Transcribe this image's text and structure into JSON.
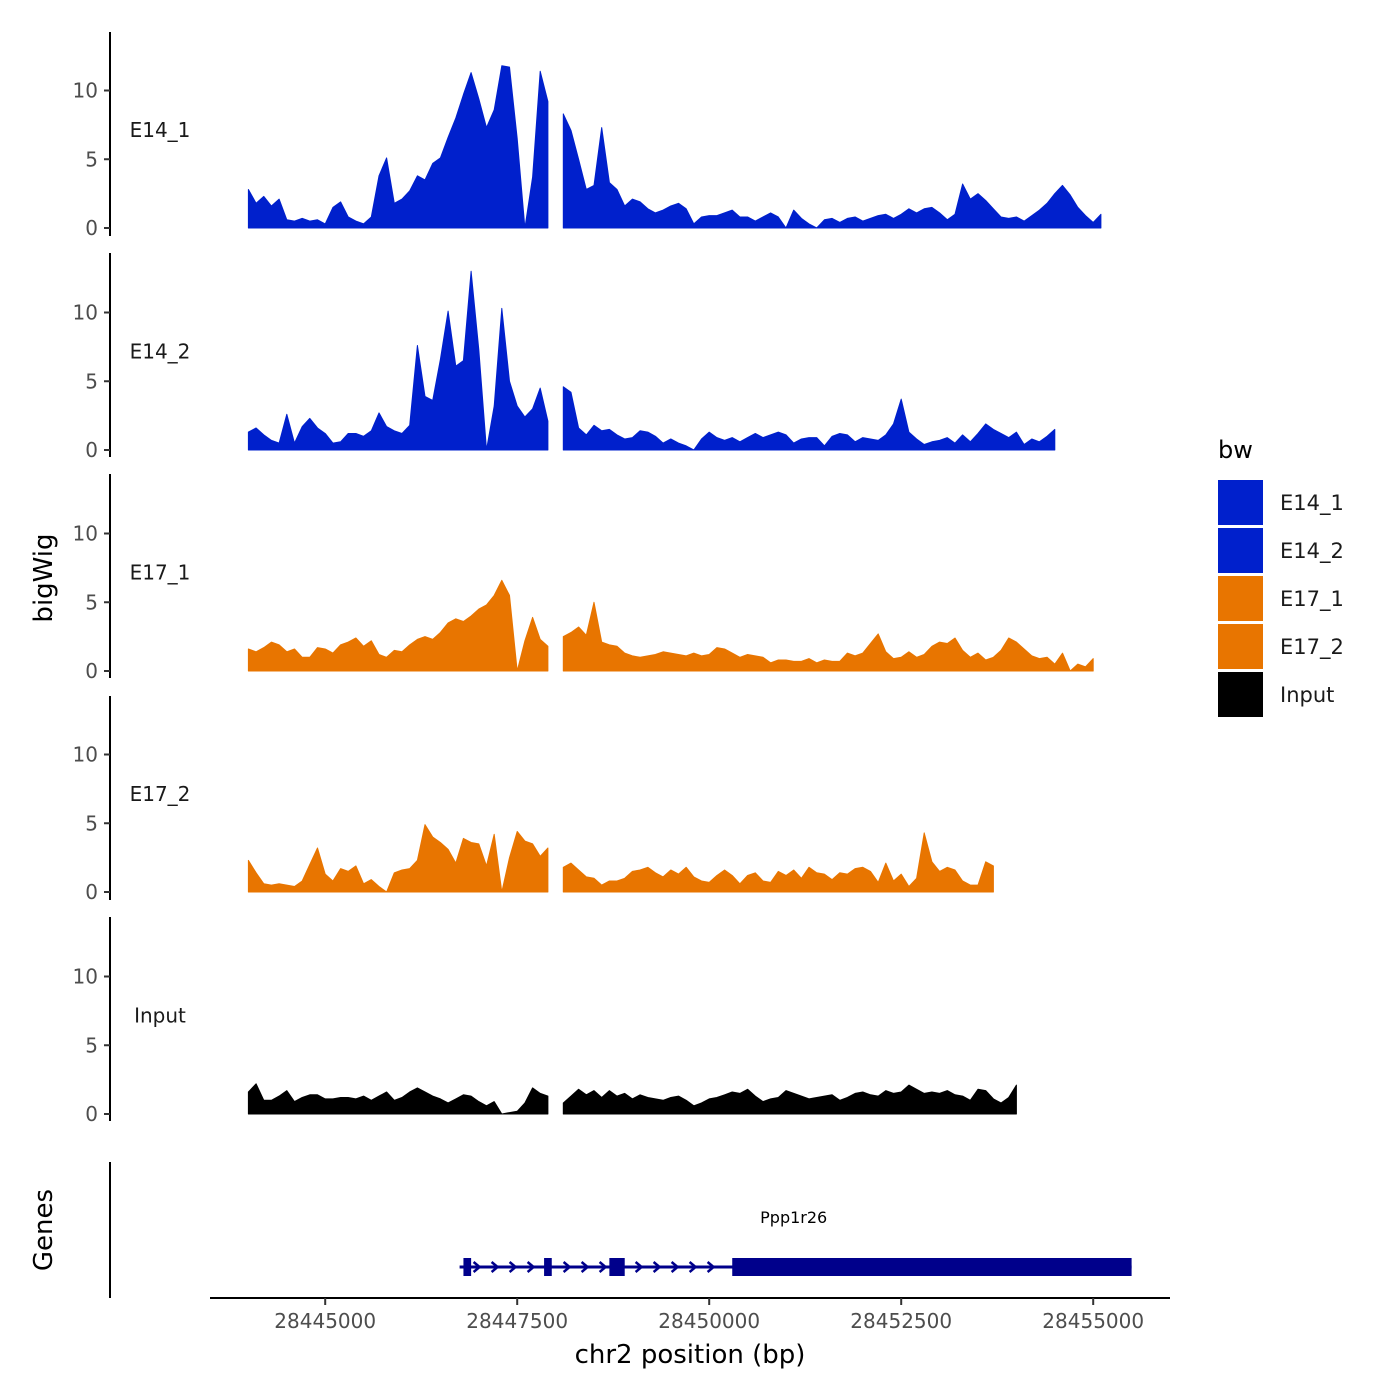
{
  "chart_data": {
    "type": "area",
    "title": "",
    "xlabel": "chr2 position (bp)",
    "ylabel": "bigWig",
    "genes_label": "Genes",
    "xlim": [
      28443500,
      28456000
    ],
    "x_ticks": [
      28445000,
      28447500,
      28450000,
      28452500,
      28455000
    ],
    "x_tick_labels": [
      "28445000",
      "28447500",
      "28450000",
      "28452500",
      "28455000"
    ],
    "ylim": [
      0,
      14
    ],
    "y_ticks": [
      0,
      5,
      10
    ],
    "y_tick_labels": [
      "0",
      "5",
      "10"
    ],
    "legend": {
      "title": "bw",
      "position": "right",
      "entries": [
        {
          "label": "E14_1",
          "color": "#0020CC"
        },
        {
          "label": "E14_2",
          "color": "#0020CC"
        },
        {
          "label": "E17_1",
          "color": "#E87500"
        },
        {
          "label": "E17_2",
          "color": "#E87500"
        },
        {
          "label": "Input",
          "color": "#000000"
        }
      ]
    },
    "x_step": 100,
    "x_start": 28444000,
    "series": [
      {
        "name": "E14_1",
        "color": "#0020CC",
        "values": [
          2.8,
          1.8,
          2.3,
          1.6,
          2.1,
          0.6,
          0.5,
          0.7,
          0.5,
          0.6,
          0.3,
          1.5,
          1.9,
          0.8,
          0.5,
          0.3,
          0.8,
          3.8,
          5.1,
          1.8,
          2.1,
          2.7,
          3.8,
          3.5,
          4.7,
          5.1,
          6.6,
          8.0,
          9.7,
          11.3,
          9.4,
          7.3,
          8.6,
          11.8,
          11.7,
          6.5,
          0.0,
          3.7,
          11.4,
          9.2,
          7.8,
          8.3,
          7.1,
          5.0,
          2.8,
          3.1,
          7.3,
          3.3,
          2.8,
          1.6,
          2.1,
          1.9,
          1.4,
          1.1,
          1.3,
          1.6,
          1.8,
          1.4,
          0.3,
          0.8,
          0.9,
          0.9,
          1.1,
          1.3,
          0.8,
          0.8,
          0.5,
          0.8,
          1.1,
          0.8,
          0.0,
          1.3,
          0.7,
          0.3,
          0.0,
          0.6,
          0.7,
          0.4,
          0.7,
          0.8,
          0.5,
          0.7,
          0.9,
          1.0,
          0.7,
          1.0,
          1.4,
          1.1,
          1.4,
          1.5,
          1.1,
          0.6,
          1.0,
          3.2,
          2.1,
          2.5,
          2.0,
          1.4,
          0.8,
          0.7,
          0.8,
          0.5,
          0.9,
          1.3,
          1.8,
          2.5,
          3.1,
          2.4,
          1.5,
          0.9,
          0.4,
          1.0
        ],
        "gaps": [
          [
            28447950,
            28448050
          ],
          [
            28450600,
            28450650
          ]
        ]
      },
      {
        "name": "E14_2",
        "color": "#0020CC",
        "values": [
          1.3,
          1.6,
          1.1,
          0.7,
          0.5,
          2.6,
          0.5,
          1.7,
          2.3,
          1.6,
          1.2,
          0.5,
          0.6,
          1.2,
          1.2,
          1.0,
          1.4,
          2.7,
          1.7,
          1.4,
          1.2,
          1.8,
          7.6,
          3.9,
          3.6,
          6.6,
          10.1,
          6.1,
          6.5,
          13.0,
          7.3,
          0.0,
          3.2,
          10.3,
          5.0,
          3.2,
          2.4,
          3.0,
          4.5,
          2.1,
          2.0,
          4.6,
          4.2,
          1.6,
          1.1,
          1.8,
          1.4,
          1.5,
          1.1,
          0.8,
          0.9,
          1.4,
          1.3,
          1.0,
          0.5,
          0.8,
          0.5,
          0.3,
          0.0,
          0.8,
          1.3,
          0.9,
          0.7,
          0.9,
          0.6,
          0.9,
          1.2,
          0.9,
          1.1,
          1.3,
          1.1,
          0.5,
          0.8,
          0.9,
          0.9,
          0.3,
          1.0,
          1.2,
          1.1,
          0.6,
          0.9,
          0.8,
          0.7,
          1.1,
          1.9,
          3.7,
          1.3,
          0.8,
          0.4,
          0.6,
          0.7,
          0.9,
          0.5,
          1.1,
          0.6,
          1.2,
          1.9,
          1.5,
          1.2,
          0.9,
          1.3,
          0.4,
          0.8,
          0.6,
          1.0,
          1.5
        ],
        "gaps": [
          [
            28447950,
            28448050
          ],
          [
            28450600,
            28450650
          ]
        ]
      },
      {
        "name": "E17_1",
        "color": "#E87500",
        "values": [
          1.6,
          1.4,
          1.7,
          2.1,
          1.9,
          1.4,
          1.6,
          1.0,
          1.0,
          1.7,
          1.6,
          1.3,
          1.9,
          2.1,
          2.4,
          1.8,
          2.2,
          1.2,
          1.0,
          1.5,
          1.4,
          1.9,
          2.3,
          2.5,
          2.3,
          2.8,
          3.5,
          3.8,
          3.6,
          4.0,
          4.5,
          4.8,
          5.5,
          6.6,
          5.5,
          0.0,
          2.2,
          3.9,
          2.3,
          1.8,
          1.6,
          2.5,
          2.8,
          3.2,
          2.6,
          5.0,
          2.1,
          1.9,
          1.8,
          1.3,
          1.1,
          1.0,
          1.1,
          1.2,
          1.4,
          1.3,
          1.2,
          1.1,
          1.3,
          1.1,
          1.2,
          1.7,
          1.6,
          1.3,
          1.0,
          1.2,
          1.1,
          1.0,
          0.6,
          0.8,
          0.8,
          0.7,
          0.7,
          0.9,
          0.6,
          0.8,
          0.7,
          0.7,
          1.3,
          1.1,
          1.3,
          2.0,
          2.7,
          1.4,
          0.9,
          1.0,
          1.4,
          1.0,
          1.2,
          1.8,
          2.1,
          2.0,
          2.4,
          1.5,
          1.0,
          1.3,
          0.8,
          1.0,
          1.5,
          2.4,
          2.1,
          1.6,
          1.1,
          0.9,
          1.0,
          0.5,
          1.3,
          0.0,
          0.5,
          0.3,
          0.9
        ],
        "gaps": [
          [
            28447950,
            28448050
          ],
          [
            28450650,
            28450700
          ],
          [
            28455000,
            28455050
          ]
        ]
      },
      {
        "name": "E17_2",
        "color": "#E87500",
        "values": [
          2.3,
          1.4,
          0.6,
          0.5,
          0.6,
          0.5,
          0.4,
          0.8,
          2.0,
          3.2,
          1.3,
          0.8,
          1.7,
          1.5,
          1.9,
          0.6,
          0.9,
          0.4,
          0.0,
          1.4,
          1.6,
          1.7,
          2.3,
          4.9,
          4.0,
          3.6,
          3.1,
          2.1,
          3.9,
          3.6,
          3.5,
          1.9,
          4.2,
          0.0,
          2.5,
          4.4,
          3.7,
          3.5,
          2.6,
          3.2,
          2.0,
          1.8,
          2.1,
          1.6,
          1.1,
          1.0,
          0.5,
          0.8,
          0.8,
          1.0,
          1.5,
          1.6,
          1.8,
          1.4,
          1.1,
          1.6,
          1.3,
          1.8,
          1.1,
          0.8,
          0.7,
          1.2,
          1.6,
          1.2,
          0.6,
          1.2,
          1.4,
          0.8,
          0.7,
          1.5,
          1.2,
          1.6,
          1.0,
          1.8,
          1.4,
          1.3,
          0.9,
          1.4,
          1.3,
          1.7,
          1.8,
          1.5,
          0.7,
          2.1,
          0.8,
          1.3,
          0.4,
          1.0,
          4.3,
          2.2,
          1.5,
          1.8,
          1.6,
          0.8,
          0.5,
          0.5,
          2.2,
          1.9
        ],
        "gaps": [
          [
            28447950,
            28448050
          ],
          [
            28450600,
            28450650
          ]
        ]
      },
      {
        "name": "Input",
        "color": "#000000",
        "values": [
          1.6,
          2.2,
          1.0,
          1.0,
          1.3,
          1.7,
          0.9,
          1.2,
          1.4,
          1.4,
          1.1,
          1.1,
          1.2,
          1.2,
          1.1,
          1.3,
          1.0,
          1.3,
          1.6,
          1.0,
          1.2,
          1.6,
          1.9,
          1.6,
          1.3,
          1.1,
          0.8,
          1.1,
          1.4,
          1.3,
          0.9,
          0.6,
          0.9,
          0.0,
          0.1,
          0.2,
          0.8,
          1.9,
          1.5,
          1.3,
          1.4,
          0.8,
          1.3,
          1.8,
          1.4,
          1.7,
          1.2,
          1.7,
          1.3,
          1.5,
          1.1,
          1.4,
          1.2,
          1.1,
          1.0,
          1.2,
          1.3,
          1.0,
          0.6,
          0.8,
          1.1,
          1.2,
          1.4,
          1.6,
          1.5,
          1.8,
          1.3,
          0.9,
          1.1,
          1.2,
          1.7,
          1.5,
          1.3,
          1.1,
          1.2,
          1.3,
          1.4,
          1.0,
          1.2,
          1.5,
          1.6,
          1.4,
          1.3,
          1.7,
          1.5,
          1.6,
          2.1,
          1.8,
          1.5,
          1.6,
          1.5,
          1.7,
          1.4,
          1.3,
          1.0,
          1.8,
          1.7,
          1.1,
          0.8,
          1.2,
          2.1
        ],
        "gaps": [
          [
            28447950,
            28448050
          ]
        ]
      }
    ],
    "gene": {
      "name": "Ppp1r26",
      "strand": "+",
      "start": 28446750,
      "end": 28455500,
      "color": "#00008B",
      "exons": [
        [
          28446800,
          28446900
        ],
        [
          28447850,
          28447950
        ],
        [
          28448700,
          28448900
        ],
        [
          28450300,
          28455500
        ]
      ],
      "thick_start": 28450300,
      "thick_end": 28455500
    }
  }
}
